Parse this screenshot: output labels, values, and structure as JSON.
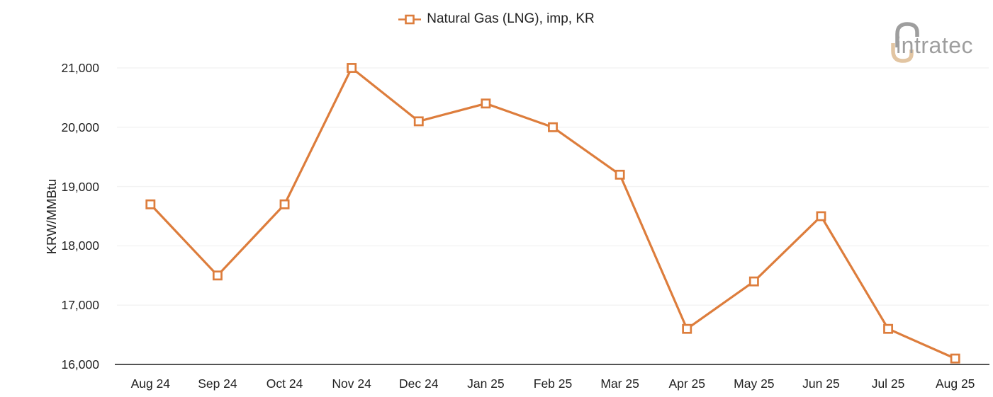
{
  "legend": {
    "label": "Natural Gas (LNG), imp, KR"
  },
  "logo": {
    "brand": "intratec"
  },
  "colors": {
    "accent": "#DD7D3C",
    "grid": "#F3F3F3",
    "axis": "#545454",
    "text": "#212121",
    "logo_gray": "#9E9E9E",
    "logo_tan": "#E2C5A2",
    "marker_fill": "#FFFFFF"
  },
  "chart_data": {
    "type": "line",
    "title": "Natural Gas (LNG), imp, KR",
    "xlabel": "",
    "ylabel": "KRW/MMBtu",
    "categories": [
      "Aug 24",
      "Sep 24",
      "Oct 24",
      "Nov 24",
      "Dec 24",
      "Jan 25",
      "Feb 25",
      "Mar 25",
      "Apr 25",
      "May 25",
      "Jun 25",
      "Jul 25",
      "Aug 25"
    ],
    "values": [
      18700,
      17500,
      18700,
      21000,
      20100,
      20400,
      20000,
      19200,
      16600,
      17400,
      18500,
      16600,
      16100
    ],
    "ylim": [
      16000,
      21000
    ],
    "yticks": [
      16000,
      17000,
      18000,
      19000,
      20000,
      21000
    ],
    "ytick_labels": [
      "16,000",
      "17,000",
      "18,000",
      "19,000",
      "20,000",
      "21,000"
    ],
    "grid": "horizontal-light",
    "legend_position": "top-center",
    "marker": "open-square",
    "line_width": 3.2
  }
}
